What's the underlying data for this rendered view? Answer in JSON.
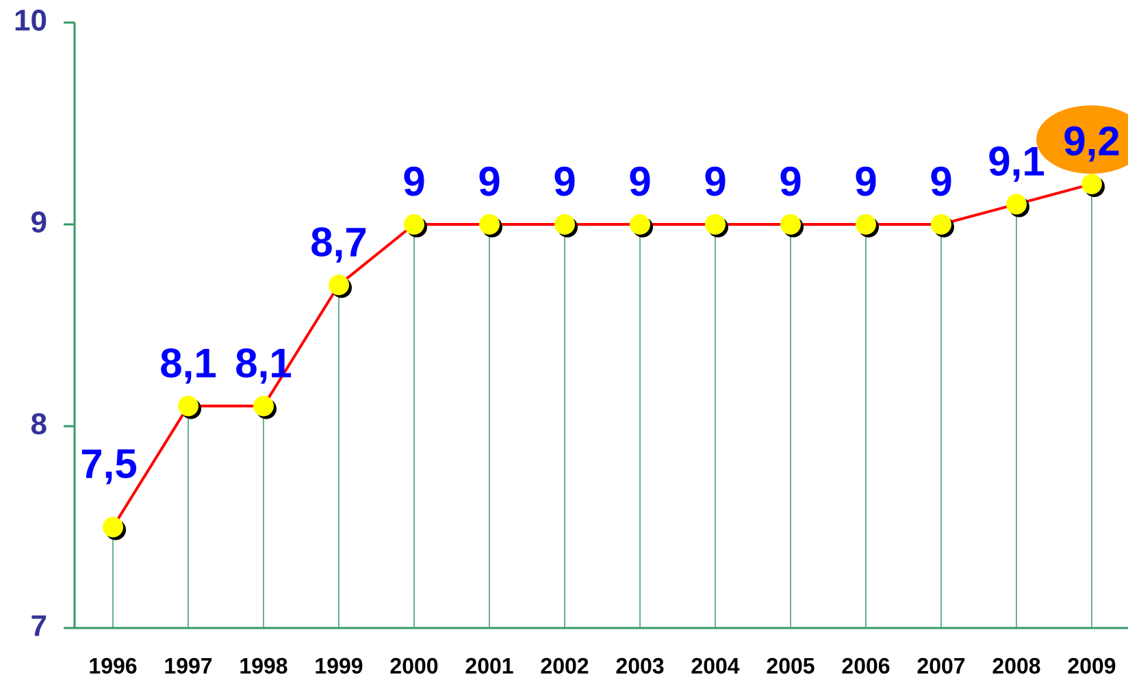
{
  "chart_data": {
    "type": "line",
    "categories": [
      "1996",
      "1997",
      "1998",
      "1999",
      "2000",
      "2001",
      "2002",
      "2003",
      "2004",
      "2005",
      "2006",
      "2007",
      "2008",
      "2009"
    ],
    "values": [
      7.5,
      8.1,
      8.1,
      8.7,
      9,
      9,
      9,
      9,
      9,
      9,
      9,
      9,
      9.1,
      9.2
    ],
    "value_labels": [
      "7,5",
      "8,1",
      "8,1",
      "8,7",
      "9",
      "9",
      "9",
      "9",
      "9",
      "9",
      "9",
      "9",
      "9,1",
      "9,2"
    ],
    "color": "#ff0000",
    "marker_color": "#ffff00",
    "drop_line_color": "#339966",
    "ylim": [
      7,
      10
    ],
    "yticks": [
      7,
      8,
      9,
      10
    ]
  }
}
